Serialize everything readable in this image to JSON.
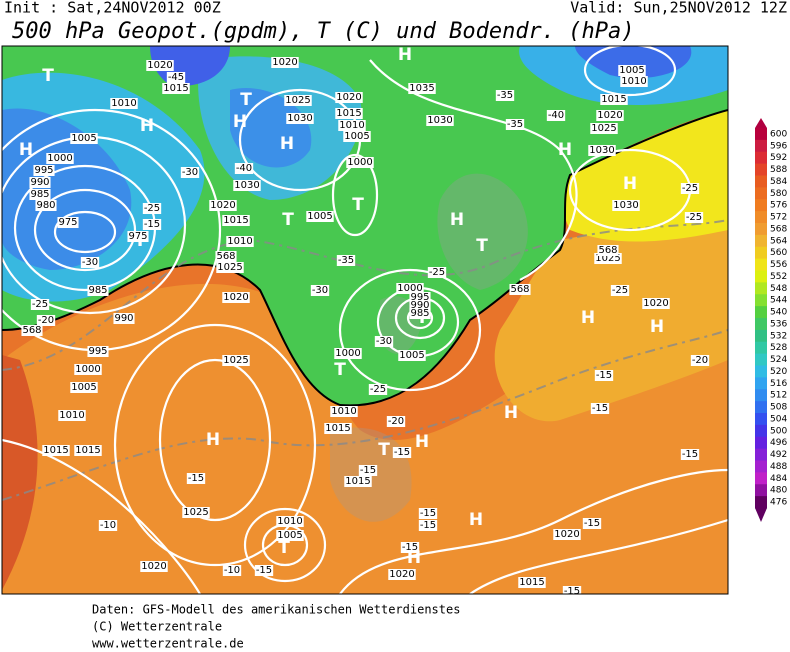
{
  "header": {
    "init": "Init : Sat,24NOV2012 00Z",
    "valid": "Valid: Sun,25NOV2012 12Z",
    "title": "500 hPa Geopot.(gpdm), T (C) und Bodendr. (hPa)"
  },
  "map_labels": [
    "T",
    "T",
    "H",
    "H",
    "H",
    "H",
    "T",
    "T",
    "T",
    "T",
    "T",
    "H",
    "T",
    "H",
    "H",
    "H",
    "H",
    "H",
    "H",
    "H",
    "T",
    "H",
    "H",
    "T",
    "H",
    "1020",
    "-45",
    "1015",
    "1010",
    "1005",
    "1000",
    "995",
    "990",
    "985",
    "980",
    "975",
    "975",
    "-30",
    "985",
    "990",
    "995",
    "1000",
    "1005",
    "1010",
    "1015",
    "-25",
    "-20",
    "-25",
    "-15",
    "-30",
    "1020",
    "1025",
    "1030",
    "1020",
    "1015",
    "1010",
    "1005",
    "1000",
    "-40",
    "1030",
    "1020",
    "1015",
    "1010",
    "1005",
    "-35",
    "-30",
    "1035",
    "1030",
    "-35",
    "-40",
    "-35",
    "1030",
    "1020",
    "1025",
    "1015",
    "1005",
    "1010",
    "1030",
    "-25",
    "-25",
    "1025",
    "-25",
    "1020",
    "-25",
    "1000",
    "995",
    "990",
    "985",
    "-30",
    "1005",
    "1000",
    "-25",
    "1010",
    "1015",
    "-20",
    "-15",
    "1020",
    "1025",
    "1015",
    "-15",
    "1025",
    "-10",
    "1020",
    "1010",
    "1005",
    "-15",
    "-10",
    "1015",
    "-15",
    "-15",
    "-15",
    "-15",
    "1020",
    "1015",
    "-15",
    "1020",
    "-15",
    "-15",
    "-20",
    "-15",
    "-15",
    "568",
    "568",
    "568",
    "568",
    "1025"
  ],
  "colorbar": {
    "ticks": [
      600,
      596,
      592,
      588,
      584,
      580,
      576,
      572,
      568,
      564,
      560,
      556,
      552,
      548,
      544,
      540,
      536,
      532,
      528,
      524,
      520,
      516,
      512,
      508,
      504,
      500,
      496,
      492,
      488,
      484,
      480,
      476
    ],
    "colors": [
      "#b8003c",
      "#cc1c40",
      "#dc2c34",
      "#e44428",
      "#e85c20",
      "#ec6c20",
      "#f07c20",
      "#f08c28",
      "#f09c30",
      "#f0b430",
      "#f0cc20",
      "#f0e418",
      "#dcf010",
      "#b0e820",
      "#84e030",
      "#54d040",
      "#40c864",
      "#30c084",
      "#30c8a4",
      "#30c8c4",
      "#30bce4",
      "#30a4f0",
      "#308cf0",
      "#3070f0",
      "#3450f0",
      "#4434e8",
      "#6420e0",
      "#8420d8",
      "#a420d0",
      "#c020c8",
      "#9010a0",
      "#600060"
    ]
  },
  "footer": [
    "Daten: GFS-Modell des amerikanischen Wetterdienstes",
    "(C) Wetterzentrale",
    "www.wetterzentrale.de"
  ]
}
